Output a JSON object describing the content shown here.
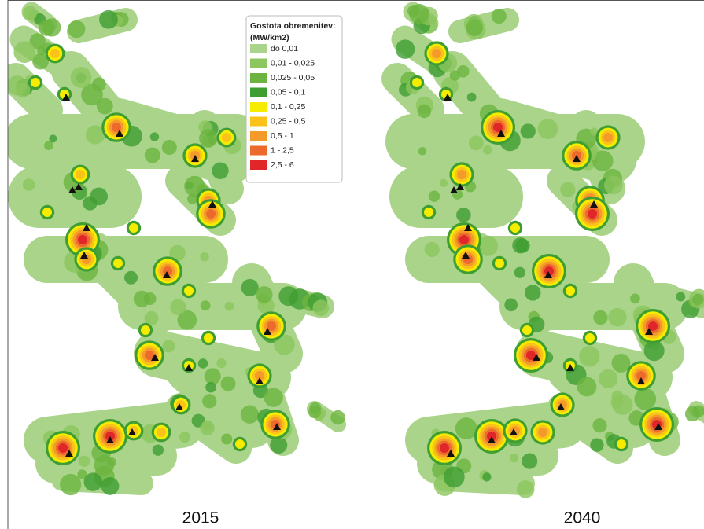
{
  "legend": {
    "title": [
      "Gostota obremenitev:",
      "(MW/km2)"
    ],
    "items": [
      {
        "label": "do 0,01",
        "color": "#a9d48a"
      },
      {
        "label": "0,01 - 0,025",
        "color": "#8cc65e"
      },
      {
        "label": "0,025 - 0,05",
        "color": "#6cb43f"
      },
      {
        "label": "0,05 - 0,1",
        "color": "#3e9e32"
      },
      {
        "label": "0,1 - 0,25",
        "color": "#f5ec00"
      },
      {
        "label": "0,25 - 0,5",
        "color": "#fbc21a"
      },
      {
        "label": "0,5 - 1",
        "color": "#f39a2a"
      },
      {
        "label": "1 - 2,5",
        "color": "#ec6a2c"
      },
      {
        "label": "2,5 - 6",
        "color": "#e1262a"
      }
    ]
  },
  "maps": [
    {
      "label": "2015"
    },
    {
      "label": "2040"
    }
  ]
}
